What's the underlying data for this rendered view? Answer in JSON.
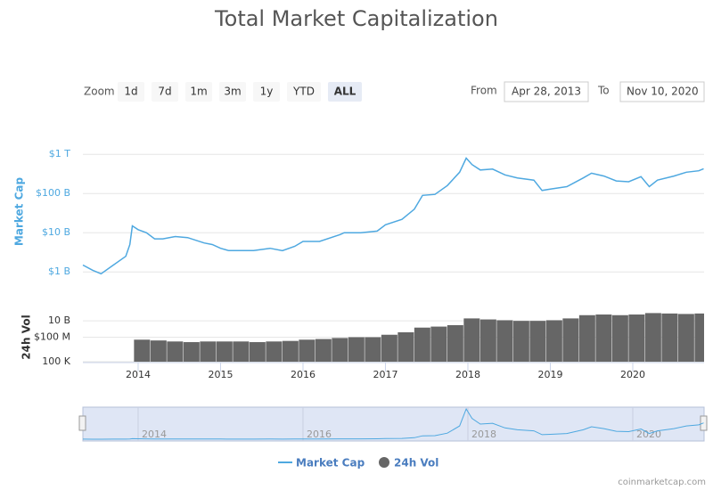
{
  "header": {
    "title": "Total Market Capitalization"
  },
  "controls": {
    "zoom_label": "Zoom",
    "zoom_buttons": [
      "1d",
      "7d",
      "1m",
      "3m",
      "1y",
      "YTD",
      "ALL"
    ],
    "selected": "ALL",
    "from_label": "From",
    "from": "Apr 28, 2013",
    "to_label": "To",
    "to": "Nov 10, 2020"
  },
  "chart_data": [
    {
      "type": "line",
      "y_label": "Market Cap",
      "log_scale": true,
      "grid": true,
      "x": [
        2013.33,
        2013.45,
        2013.55,
        2013.7,
        2013.85,
        2013.9,
        2013.93,
        2014.0,
        2014.1,
        2014.2,
        2014.3,
        2014.45,
        2014.6,
        2014.8,
        2014.9,
        2015.0,
        2015.1,
        2015.4,
        2015.6,
        2015.75,
        2015.9,
        2016.0,
        2016.2,
        2016.45,
        2016.5,
        2016.7,
        2016.9,
        2017.0,
        2017.2,
        2017.35,
        2017.45,
        2017.6,
        2017.75,
        2017.9,
        2017.98,
        2018.05,
        2018.15,
        2018.3,
        2018.45,
        2018.6,
        2018.8,
        2018.9,
        2019.0,
        2019.2,
        2019.4,
        2019.5,
        2019.65,
        2019.8,
        2019.95,
        2020.1,
        2020.2,
        2020.3,
        2020.5,
        2020.65,
        2020.8,
        2020.86
      ],
      "series": [
        {
          "name": "Market Cap",
          "color": "#4ea8e0",
          "values": [
            1500000000,
            1100000000,
            900000000,
            1500000000,
            2500000000,
            5000000000,
            15000000000,
            12000000000,
            10000000000,
            7000000000,
            7000000000,
            8000000000,
            7500000000,
            5500000000,
            5000000000,
            4000000000,
            3500000000,
            3500000000,
            4000000000,
            3500000000,
            4500000000,
            6000000000,
            6000000000,
            9000000000,
            10000000000,
            10000000000,
            11000000000,
            16000000000,
            22000000000,
            40000000000,
            90000000000,
            95000000000,
            160000000000,
            350000000000,
            800000000000,
            550000000000,
            400000000000,
            420000000000,
            300000000000,
            250000000000,
            220000000000,
            120000000000,
            130000000000,
            150000000000,
            250000000000,
            330000000000,
            280000000000,
            210000000000,
            200000000000,
            270000000000,
            150000000000,
            220000000000,
            280000000000,
            350000000000,
            380000000000,
            430000000000
          ]
        }
      ],
      "xlim": [
        2013.33,
        2020.865
      ],
      "ylim": [
        600000000,
        2000000000000
      ],
      "yticks": [
        {
          "value": 1000000000,
          "label": "$1 B"
        },
        {
          "value": 10000000000,
          "label": "$10 B"
        },
        {
          "value": 100000000000,
          "label": "$100 B"
        },
        {
          "value": 1000000000000,
          "label": "$1 T"
        }
      ],
      "navigator_xticks": [
        2014,
        2016,
        2018,
        2020
      ]
    },
    {
      "type": "bar",
      "y_label": "24h Vol",
      "log_scale": true,
      "grid": true,
      "x": [
        2013.95,
        2014.15,
        2014.35,
        2014.55,
        2014.75,
        2014.95,
        2015.15,
        2015.35,
        2015.55,
        2015.75,
        2015.95,
        2016.15,
        2016.35,
        2016.55,
        2016.75,
        2016.95,
        2017.15,
        2017.35,
        2017.55,
        2017.75,
        2017.95,
        2018.15,
        2018.35,
        2018.55,
        2018.75,
        2018.95,
        2019.15,
        2019.35,
        2019.55,
        2019.75,
        2019.95,
        2020.15,
        2020.35,
        2020.55,
        2020.75
      ],
      "series": [
        {
          "name": "24h Vol",
          "color": "#666666",
          "values": [
            50000000,
            40000000,
            30000000,
            25000000,
            30000000,
            30000000,
            30000000,
            25000000,
            30000000,
            35000000,
            50000000,
            60000000,
            80000000,
            100000000,
            100000000,
            200000000,
            400000000,
            1500000000,
            2000000000,
            3000000000,
            20000000000,
            15000000000,
            12000000000,
            10000000000,
            10000000000,
            12000000000,
            20000000000,
            50000000000,
            60000000000,
            50000000000,
            60000000000,
            90000000000,
            80000000000,
            70000000000,
            80000000000
          ]
        }
      ],
      "xlim": [
        2013.33,
        2020.865
      ],
      "xticks": [
        2014,
        2015,
        2016,
        2017,
        2018,
        2019,
        2020
      ],
      "ylim": [
        100000,
        100000000000
      ],
      "yticks": [
        {
          "value": 100000000,
          "label": "$100 M"
        },
        {
          "value": 10000000000,
          "label": "10 B"
        },
        {
          "value": 100000,
          "label": "100 K"
        }
      ]
    }
  ],
  "credit": "coinmarketcap.com"
}
